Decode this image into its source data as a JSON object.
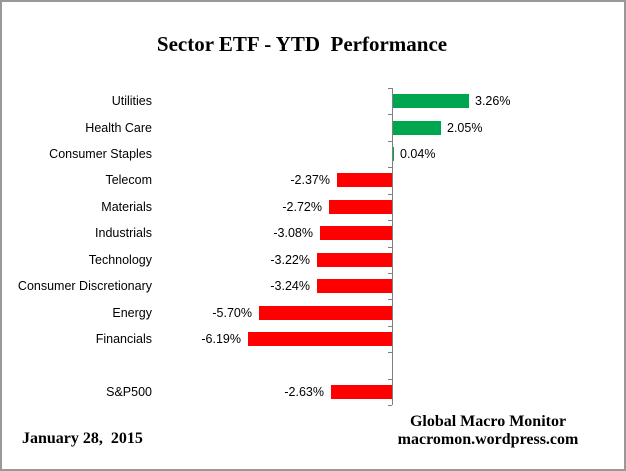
{
  "title": "Sector ETF - YTD  Performance",
  "footer": {
    "date": "January 28,  2015",
    "credit_line1": "Global Macro Monitor",
    "credit_line2": "macromon.wordpress.com"
  },
  "chart_data": {
    "type": "bar",
    "orientation": "horizontal",
    "title": "Sector ETF - YTD Performance",
    "categories": [
      "Utilities",
      "Health Care",
      "Consumer Staples",
      "Telecom",
      "Materials",
      "Industrials",
      "Technology",
      "Consumer Discretionary",
      "Energy",
      "Financials",
      "S&P500"
    ],
    "values": [
      3.26,
      2.05,
      0.04,
      -2.37,
      -2.72,
      -3.08,
      -3.22,
      -3.24,
      -5.7,
      -6.19,
      -2.63
    ],
    "value_labels": [
      "3.26%",
      "2.05%",
      "0.04%",
      "-2.37%",
      "-2.72%",
      "-3.08%",
      "-3.22%",
      "-3.24%",
      "-5.70%",
      "-6.19%",
      "-2.63%"
    ],
    "gap_before_last": true,
    "positive_color": "#00A550",
    "negative_color": "#FF0000",
    "axis_color": "#808080",
    "xlim": [
      -6.5,
      3.5
    ],
    "grid": false,
    "legend": false
  }
}
